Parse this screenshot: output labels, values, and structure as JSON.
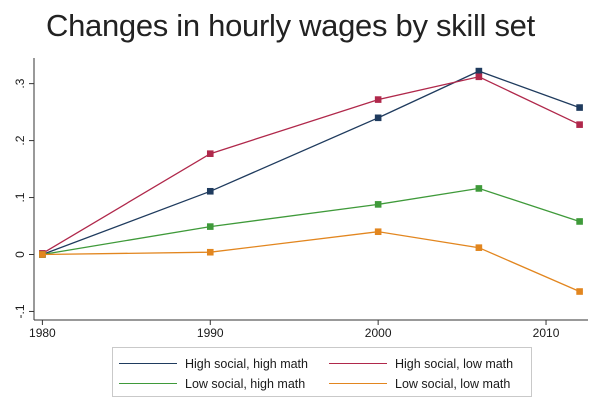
{
  "title": "Changes in hourly wages by skill set",
  "chart_data": {
    "type": "line",
    "title": "Changes in hourly wages by skill set",
    "xlabel": "",
    "ylabel": "",
    "xlim": [
      1979.5,
      2012.5
    ],
    "ylim": [
      -0.115,
      0.345
    ],
    "xticks": [
      1980,
      1990,
      2000,
      2010
    ],
    "xtick_labels": [
      "1980",
      "1990",
      "2000",
      "2010"
    ],
    "yticks": [
      -0.1,
      0,
      0.1,
      0.2,
      0.3
    ],
    "ytick_labels": [
      "-.1",
      "0",
      ".1",
      ".2",
      ".3"
    ],
    "grid": false,
    "legend_position": "bottom",
    "x": [
      1980,
      1990,
      2000,
      2006,
      2012
    ],
    "series": [
      {
        "name": "High social, high math",
        "color": "#1f3b5e",
        "values": [
          0.0,
          0.111,
          0.24,
          0.322,
          0.258
        ]
      },
      {
        "name": "High social, low math",
        "color": "#b0284b",
        "values": [
          0.002,
          0.177,
          0.272,
          0.312,
          0.228
        ]
      },
      {
        "name": "Low social, high math",
        "color": "#3f9a3a",
        "values": [
          0.0,
          0.049,
          0.088,
          0.116,
          0.058
        ]
      },
      {
        "name": "Low social, low math",
        "color": "#e2861f",
        "values": [
          0.0,
          0.004,
          0.04,
          0.012,
          -0.065
        ]
      }
    ]
  }
}
